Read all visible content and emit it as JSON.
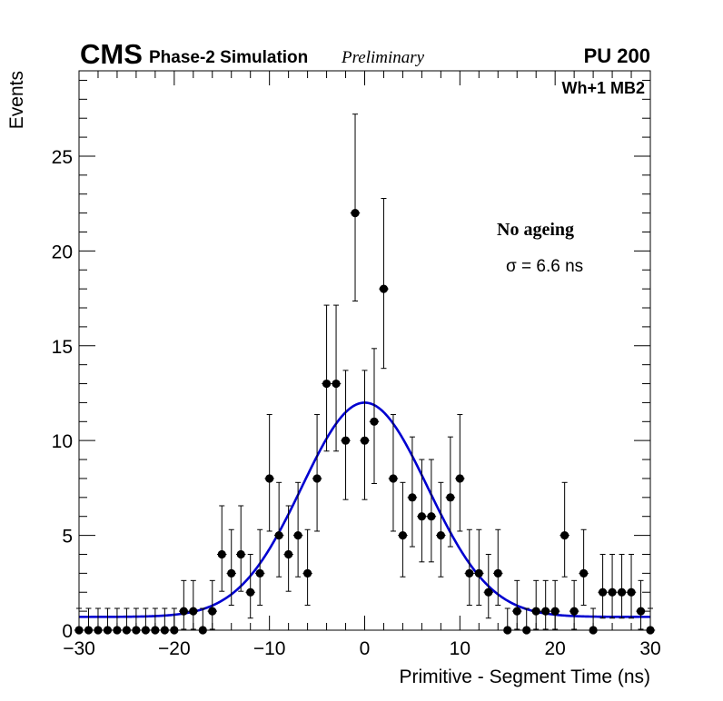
{
  "header": {
    "experiment": "CMS",
    "subtitle": "Phase-2 Simulation",
    "status": "Preliminary",
    "pileup": "PU 200",
    "station": "Wh+1 MB2"
  },
  "annotation": {
    "condition": "No ageing",
    "sigma_text": "σ = 6.6 ns"
  },
  "chart_data": {
    "type": "scatter",
    "xlabel": "Primitive - Segment Time (ns)",
    "ylabel": "Events",
    "xlim": [
      -30,
      30
    ],
    "ylim": [
      0,
      29.5
    ],
    "x_ticks": [
      -30,
      -20,
      -10,
      0,
      10,
      20,
      30
    ],
    "x_tick_labels": [
      "−30",
      "−20",
      "−10",
      "0",
      "10",
      "20",
      "30"
    ],
    "y_ticks": [
      0,
      5,
      10,
      15,
      20,
      25
    ],
    "y_tick_labels": [
      "0",
      "5",
      "10",
      "15",
      "20",
      "25"
    ],
    "bin_width": 1,
    "series": [
      {
        "name": "Data",
        "x": [
          -30,
          -29,
          -28,
          -27,
          -26,
          -25,
          -24,
          -23,
          -22,
          -21,
          -20,
          -19,
          -18,
          -17,
          -16,
          -15,
          -14,
          -13,
          -12,
          -11,
          -10,
          -9,
          -8,
          -7,
          -6,
          -5,
          -4,
          -3,
          -2,
          -1,
          0,
          1,
          2,
          3,
          4,
          5,
          6,
          7,
          8,
          9,
          10,
          11,
          12,
          13,
          14,
          15,
          16,
          17,
          18,
          19,
          20,
          21,
          22,
          23,
          24,
          25,
          26,
          27,
          28,
          29,
          30
        ],
        "values": [
          0,
          0,
          0,
          0,
          0,
          0,
          0,
          0,
          0,
          0,
          0,
          1,
          1,
          0,
          1,
          4,
          3,
          4,
          2,
          3,
          8,
          5,
          4,
          5,
          3,
          8,
          13,
          13,
          10,
          22,
          10,
          11,
          18,
          8,
          5,
          7,
          6,
          6,
          5,
          7,
          8,
          3,
          3,
          2,
          3,
          0,
          1,
          0,
          1,
          1,
          1,
          5,
          1,
          3,
          0,
          2,
          2,
          2,
          2,
          1,
          0
        ]
      },
      {
        "name": "Gaussian fit",
        "fit": "gauss + constant",
        "amplitude": 11.3,
        "mean": 0,
        "sigma": 6.6,
        "constant": 0.7
      }
    ]
  }
}
